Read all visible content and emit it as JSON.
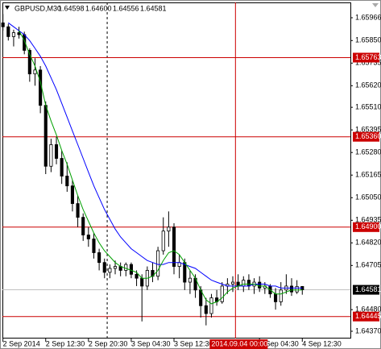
{
  "chart_data": {
    "type": "candlestick",
    "title": "GBPUSD,M30",
    "quote_labels": [
      "1.64598",
      "1.64600",
      "1.64556",
      "1.64581"
    ],
    "open": [
      1.6594,
      1.6592,
      1.6587,
      1.6589,
      1.6588,
      1.658,
      1.6568,
      1.657,
      1.6552,
      1.6521,
      1.6532,
      1.6525,
      1.6516,
      1.6511,
      1.6502,
      1.6495,
      1.6486,
      1.6484,
      1.6477,
      1.6472,
      1.6467,
      1.6469,
      1.647,
      1.6468,
      1.6471,
      1.6466,
      1.6464,
      1.646,
      1.6468,
      1.6465,
      1.6478,
      1.6488,
      1.649,
      1.647,
      1.6472,
      1.6462,
      1.6464,
      1.6458,
      1.645,
      1.6446,
      1.6454,
      1.6452,
      1.646,
      1.6461,
      1.6462,
      1.646,
      1.6463,
      1.646,
      1.6462,
      1.6459,
      1.646,
      1.6456,
      1.6452,
      1.6458,
      1.646,
      1.6457,
      1.64598
    ],
    "high": [
      1.65985,
      1.65935,
      1.65905,
      1.6592,
      1.65895,
      1.6581,
      1.6576,
      1.6572,
      1.6554,
      1.6535,
      1.6536,
      1.6529,
      1.6523,
      1.6514,
      1.6506,
      1.6497,
      1.649,
      1.6487,
      1.6479,
      1.6474,
      1.6471,
      1.6473,
      1.6472,
      1.6472,
      1.6472,
      1.6468,
      1.6466,
      1.647,
      1.6472,
      1.648,
      1.6495,
      1.6498,
      1.6492,
      1.6476,
      1.6474,
      1.6468,
      1.6466,
      1.646,
      1.6454,
      1.6456,
      1.6458,
      1.6462,
      1.6464,
      1.6465,
      1.6466,
      1.6465,
      1.6466,
      1.6464,
      1.6465,
      1.6462,
      1.6461,
      1.6459,
      1.6462,
      1.6466,
      1.6464,
      1.6463,
      1.646
    ],
    "low": [
      1.659,
      1.6585,
      1.6582,
      1.6586,
      1.6578,
      1.6564,
      1.6562,
      1.6548,
      1.6517,
      1.6518,
      1.6522,
      1.6512,
      1.6508,
      1.6498,
      1.649,
      1.6483,
      1.648,
      1.6474,
      1.6468,
      1.6464,
      1.6464,
      1.6466,
      1.6465,
      1.6465,
      1.6464,
      1.646,
      1.6442,
      1.6458,
      1.6462,
      1.6463,
      1.6476,
      1.648,
      1.6466,
      1.6464,
      1.6458,
      1.6456,
      1.6454,
      1.6444,
      1.644,
      1.6444,
      1.645,
      1.6451,
      1.6456,
      1.6457,
      1.6458,
      1.6457,
      1.6458,
      1.6456,
      1.6457,
      1.6456,
      1.6454,
      1.6448,
      1.645,
      1.6456,
      1.6455,
      1.6456,
      1.64556
    ],
    "close": [
      1.6592,
      1.6587,
      1.6589,
      1.6588,
      1.658,
      1.6568,
      1.657,
      1.6552,
      1.6521,
      1.6532,
      1.6525,
      1.6516,
      1.6511,
      1.6502,
      1.6495,
      1.6486,
      1.6484,
      1.6477,
      1.6472,
      1.6467,
      1.6469,
      1.647,
      1.6468,
      1.6471,
      1.6466,
      1.6464,
      1.646,
      1.6468,
      1.6465,
      1.6478,
      1.6488,
      1.649,
      1.647,
      1.6472,
      1.6462,
      1.6464,
      1.6458,
      1.645,
      1.6446,
      1.6454,
      1.6452,
      1.646,
      1.6461,
      1.6462,
      1.646,
      1.6463,
      1.646,
      1.6462,
      1.6459,
      1.646,
      1.6456,
      1.6452,
      1.6458,
      1.646,
      1.6457,
      1.64598,
      1.64581
    ],
    "moving_averages": [
      {
        "color": "#0000ff",
        "values": [
          null,
          1.6594,
          1.6592,
          1.659,
          1.6588,
          1.6585,
          1.6581,
          1.6577,
          1.6572,
          1.6566,
          1.656,
          1.6553,
          1.6546,
          1.6539,
          1.6532,
          1.6525,
          1.6518,
          1.6511,
          1.6505,
          1.6499,
          1.6494,
          1.6489,
          1.6485,
          1.6482,
          1.6479,
          1.6477,
          1.6475,
          1.6473,
          1.6472,
          1.6471,
          1.6471,
          1.6472,
          1.6472,
          1.6472,
          1.6471,
          1.647,
          1.6469,
          1.6467,
          1.6465,
          1.6463,
          1.6462,
          1.6461,
          1.646,
          1.646,
          1.646,
          1.646,
          1.646,
          1.6461,
          1.6461,
          1.6461,
          1.646,
          1.646,
          1.6459,
          1.6459,
          1.6459,
          1.6459,
          1.6459
        ]
      },
      {
        "color": "#00a000",
        "values": [
          null,
          null,
          null,
          1.659,
          1.6585,
          1.6578,
          1.6572,
          1.6564,
          1.6552,
          1.6544,
          1.6537,
          1.6529,
          1.6522,
          1.6514,
          1.6506,
          1.6499,
          1.6493,
          1.6487,
          1.6482,
          1.6478,
          1.6475,
          1.6472,
          1.647,
          1.6469,
          1.6468,
          1.6467,
          1.6464,
          1.6464,
          1.6465,
          1.6468,
          1.6473,
          1.6477,
          1.6478,
          1.6476,
          1.6472,
          1.6468,
          1.6464,
          1.6458,
          1.6453,
          1.6451,
          1.6452,
          1.6454,
          1.6457,
          1.6459,
          1.646,
          1.6461,
          1.6461,
          1.6461,
          1.646,
          1.646,
          1.6458,
          1.6456,
          1.6456,
          1.6457,
          1.6458,
          1.6458,
          1.6458
        ]
      }
    ],
    "ylim": [
      1.64333,
      1.66044
    ],
    "yticks": [
      1.65966,
      {
        "value": 1.6585,
        "label": "1.65850"
      },
      1.65735,
      {
        "value": 1.6562,
        "label": "1.65620"
      },
      {
        "value": 1.6551,
        "label": "1.65510"
      },
      1.65395,
      {
        "value": 1.6528,
        "label": "1.65280"
      },
      1.65165,
      {
        "value": 1.6505,
        "label": "1.65050"
      },
      1.64935,
      {
        "value": 1.6482,
        "label": "1.64820"
      },
      1.64705,
      {
        "value": 1.6448,
        "label": "1.64480"
      },
      {
        "value": 1.6437,
        "label": "1.64370"
      }
    ],
    "levels": [
      1.65763,
      {
        "value": 1.6536,
        "label": "1.65360"
      },
      {
        "value": 1.649,
        "label": "1.64900"
      },
      1.64445
    ],
    "level_color": "#cc0000",
    "xlim": [
      -0.1,
      65
    ],
    "xticks": [
      {
        "value": 0,
        "label": "2 Sep 2014"
      },
      {
        "value": 8,
        "label": "2 Sep 12:30"
      },
      {
        "value": 16,
        "label": "2 Sep 20:30"
      },
      {
        "value": 24,
        "label": "3 Sep 04:30"
      },
      {
        "value": 32,
        "label": "3 Sep 12:30"
      },
      {
        "value": 48,
        "label": "4 Sep 04:30"
      },
      {
        "value": 56,
        "label": "4 Sep 12:30"
      }
    ],
    "day_separators": [
      19.5
    ],
    "crosshair": {
      "value": 43.5,
      "label": "2014.09.04 00:00"
    }
  }
}
